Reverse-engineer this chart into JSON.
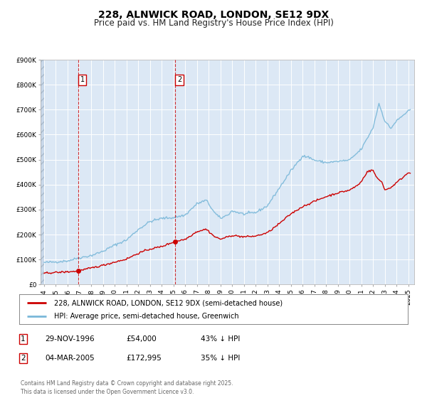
{
  "title": "228, ALNWICK ROAD, LONDON, SE12 9DX",
  "subtitle": "Price paid vs. HM Land Registry's House Price Index (HPI)",
  "background_color": "#ffffff",
  "plot_bg_color": "#dce8f5",
  "grid_color": "#ffffff",
  "hatch_color": "#c8d8ea",
  "ylim": [
    0,
    900000
  ],
  "yticks": [
    0,
    100000,
    200000,
    300000,
    400000,
    500000,
    600000,
    700000,
    800000,
    900000
  ],
  "ytick_labels": [
    "£0",
    "£100K",
    "£200K",
    "£300K",
    "£400K",
    "£500K",
    "£600K",
    "£700K",
    "£800K",
    "£900K"
  ],
  "xlim_start": 1993.7,
  "xlim_end": 2025.5,
  "hpi_color": "#7ab8d9",
  "price_color": "#cc0000",
  "sale1_date": 1996.91,
  "sale1_price": 54000,
  "sale1_label": "1",
  "sale2_date": 2005.17,
  "sale2_price": 172995,
  "sale2_label": "2",
  "legend_line1": "228, ALNWICK ROAD, LONDON, SE12 9DX (semi-detached house)",
  "legend_line2": "HPI: Average price, semi-detached house, Greenwich",
  "annotation1_date": "29-NOV-1996",
  "annotation1_price": "£54,000",
  "annotation1_hpi": "43% ↓ HPI",
  "annotation2_date": "04-MAR-2005",
  "annotation2_price": "£172,995",
  "annotation2_hpi": "35% ↓ HPI",
  "footer": "Contains HM Land Registry data © Crown copyright and database right 2025.\nThis data is licensed under the Open Government Licence v3.0.",
  "title_fontsize": 10,
  "subtitle_fontsize": 8.5,
  "tick_fontsize": 6.5,
  "legend_fontsize": 7,
  "annot_fontsize": 7.5
}
